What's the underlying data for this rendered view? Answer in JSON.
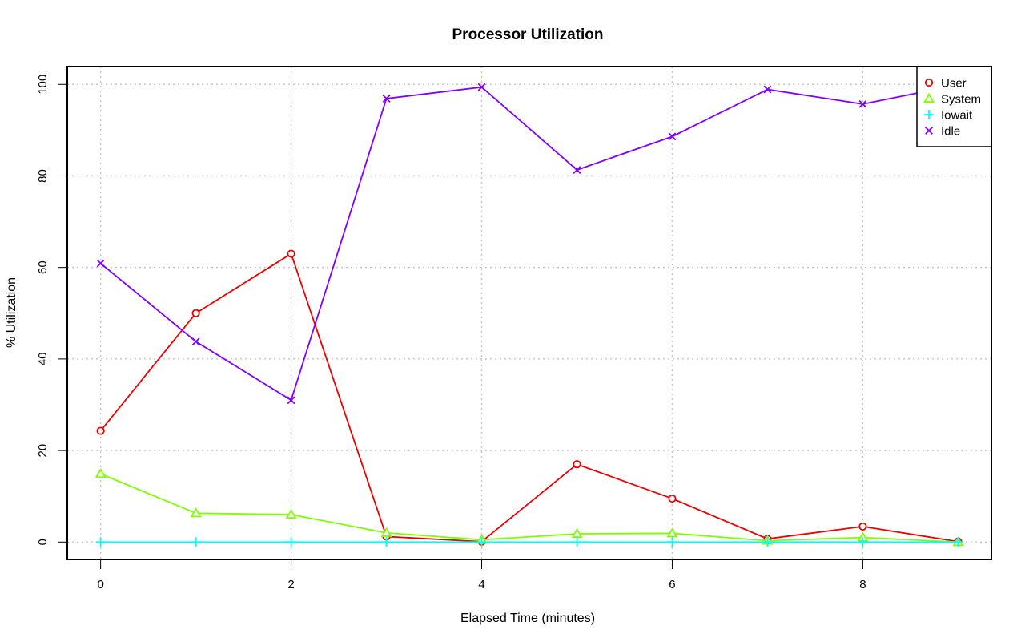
{
  "chart_data": {
    "type": "line",
    "title": "Processor Utilization",
    "xlabel": "Elapsed Time (minutes)",
    "ylabel": "% Utilization",
    "x": [
      0,
      1,
      2,
      3,
      4,
      5,
      6,
      7,
      8,
      9
    ],
    "xticks": [
      0,
      2,
      4,
      6,
      8
    ],
    "yticks": [
      0,
      20,
      40,
      60,
      80,
      100
    ],
    "xlim": [
      -0.35,
      9.35
    ],
    "ylim": [
      -3.8,
      103.9
    ],
    "grid": true,
    "legend_position": "top-right",
    "series": [
      {
        "name": "User",
        "color": "#ee0000",
        "marker": "circle",
        "values": [
          24.3,
          50.0,
          63.0,
          1.2,
          0.1,
          17.0,
          9.5,
          0.7,
          3.4,
          0.1
        ]
      },
      {
        "name": "System",
        "color": "#7fff00",
        "marker": "triangle",
        "values": [
          14.9,
          6.3,
          6.0,
          2.0,
          0.5,
          1.8,
          1.9,
          0.3,
          1.0,
          0.0
        ]
      },
      {
        "name": "Iowait",
        "color": "#00ffff",
        "marker": "plus",
        "values": [
          0.0,
          0.0,
          0.0,
          0.0,
          0.0,
          0.0,
          0.0,
          0.0,
          0.0,
          0.0
        ]
      },
      {
        "name": "Idle",
        "color": "#8000ff",
        "marker": "x",
        "values": [
          60.9,
          43.8,
          31.0,
          96.9,
          99.4,
          81.3,
          88.6,
          98.9,
          95.7,
          99.9
        ]
      }
    ]
  }
}
